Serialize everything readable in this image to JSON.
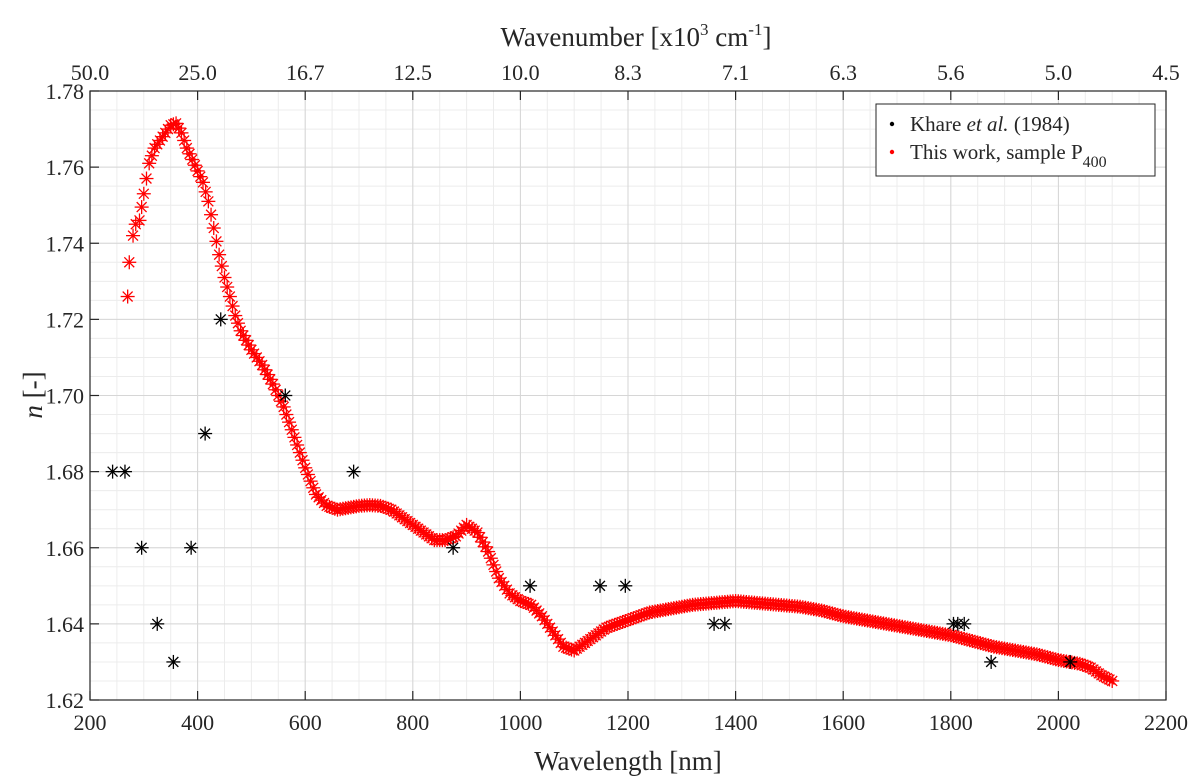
{
  "chart_data": {
    "type": "scatter",
    "xlabel": "Wavelength [nm]",
    "ylabel_italic": "n",
    "ylabel_rest": " [-]",
    "top_label_main": "Wavenumber [x10",
    "top_label_sup1": "3",
    "top_label_mid": " cm",
    "top_label_sup2": "-1",
    "top_label_end": "]",
    "xlim": [
      200,
      2200
    ],
    "ylim": [
      1.62,
      1.78
    ],
    "x_ticks": [
      200,
      400,
      600,
      800,
      1000,
      1200,
      1400,
      1600,
      1800,
      2000,
      2200
    ],
    "y_ticks": [
      1.62,
      1.64,
      1.66,
      1.68,
      1.7,
      1.72,
      1.74,
      1.76,
      1.78
    ],
    "y_tick_labels": [
      "1.62",
      "1.64",
      "1.66",
      "1.68",
      "1.70",
      "1.72",
      "1.74",
      "1.76",
      "1.78"
    ],
    "top_ticks": [
      {
        "wavelength": 200,
        "label": "50.0"
      },
      {
        "wavelength": 400,
        "label": "25.0"
      },
      {
        "wavelength": 600,
        "label": "16.7"
      },
      {
        "wavelength": 800,
        "label": "12.5"
      },
      {
        "wavelength": 1000,
        "label": "10.0"
      },
      {
        "wavelength": 1200,
        "label": "8.3"
      },
      {
        "wavelength": 1400,
        "label": "7.1"
      },
      {
        "wavelength": 1600,
        "label": "6.3"
      },
      {
        "wavelength": 1800,
        "label": "5.6"
      },
      {
        "wavelength": 2000,
        "label": "5.0"
      },
      {
        "wavelength": 2200,
        "label": "4.5"
      }
    ],
    "grid": true,
    "minor_grid": true,
    "legend_position": "top-right",
    "series": [
      {
        "name_parts": {
          "pre": "Khare ",
          "italic": "et al.",
          "post": " (1984)"
        },
        "color": "#000000",
        "marker": "asterisk",
        "points": [
          [
            242,
            1.68
          ],
          [
            265,
            1.68
          ],
          [
            296,
            1.66
          ],
          [
            325,
            1.64
          ],
          [
            355,
            1.63
          ],
          [
            388,
            1.66
          ],
          [
            414,
            1.69
          ],
          [
            443,
            1.72
          ],
          [
            563,
            1.7
          ],
          [
            690,
            1.68
          ],
          [
            875,
            1.66
          ],
          [
            1018,
            1.65
          ],
          [
            1148,
            1.65
          ],
          [
            1195,
            1.65
          ],
          [
            1360,
            1.64
          ],
          [
            1380,
            1.64
          ],
          [
            1805,
            1.64
          ],
          [
            1813,
            1.64
          ],
          [
            1825,
            1.64
          ],
          [
            1875,
            1.63
          ],
          [
            2022,
            1.63
          ]
        ]
      },
      {
        "name_parts": {
          "pre": "This work, sample P",
          "sub": "400"
        },
        "color": "#ff0000",
        "marker": "asterisk",
        "curve_keypoints": [
          [
            270,
            1.726
          ],
          [
            273,
            1.735
          ],
          [
            280,
            1.742
          ],
          [
            285,
            1.745
          ],
          [
            292,
            1.746
          ],
          [
            300,
            1.753
          ],
          [
            305,
            1.757
          ],
          [
            310,
            1.761
          ],
          [
            320,
            1.765
          ],
          [
            330,
            1.767
          ],
          [
            340,
            1.769
          ],
          [
            350,
            1.771
          ],
          [
            360,
            1.7715
          ],
          [
            370,
            1.769
          ],
          [
            380,
            1.765
          ],
          [
            390,
            1.762
          ],
          [
            400,
            1.759
          ],
          [
            410,
            1.756
          ],
          [
            420,
            1.751
          ],
          [
            430,
            1.744
          ],
          [
            440,
            1.737
          ],
          [
            450,
            1.731
          ],
          [
            460,
            1.726
          ],
          [
            470,
            1.721
          ],
          [
            480,
            1.717
          ],
          [
            500,
            1.712
          ],
          [
            520,
            1.708
          ],
          [
            540,
            1.703
          ],
          [
            560,
            1.697
          ],
          [
            580,
            1.689
          ],
          [
            600,
            1.681
          ],
          [
            620,
            1.674
          ],
          [
            640,
            1.671
          ],
          [
            660,
            1.67
          ],
          [
            680,
            1.6705
          ],
          [
            700,
            1.671
          ],
          [
            720,
            1.6712
          ],
          [
            740,
            1.671
          ],
          [
            760,
            1.67
          ],
          [
            780,
            1.668
          ],
          [
            800,
            1.666
          ],
          [
            820,
            1.664
          ],
          [
            840,
            1.662
          ],
          [
            860,
            1.662
          ],
          [
            880,
            1.663
          ],
          [
            900,
            1.666
          ],
          [
            920,
            1.664
          ],
          [
            940,
            1.659
          ],
          [
            960,
            1.652
          ],
          [
            980,
            1.648
          ],
          [
            1000,
            1.646
          ],
          [
            1020,
            1.645
          ],
          [
            1040,
            1.642
          ],
          [
            1060,
            1.638
          ],
          [
            1080,
            1.634
          ],
          [
            1100,
            1.633
          ],
          [
            1120,
            1.635
          ],
          [
            1140,
            1.637
          ],
          [
            1160,
            1.639
          ],
          [
            1180,
            1.64
          ],
          [
            1200,
            1.641
          ],
          [
            1240,
            1.643
          ],
          [
            1280,
            1.644
          ],
          [
            1320,
            1.645
          ],
          [
            1360,
            1.6455
          ],
          [
            1400,
            1.646
          ],
          [
            1440,
            1.6455
          ],
          [
            1480,
            1.645
          ],
          [
            1520,
            1.6445
          ],
          [
            1560,
            1.6435
          ],
          [
            1600,
            1.642
          ],
          [
            1640,
            1.641
          ],
          [
            1680,
            1.64
          ],
          [
            1720,
            1.639
          ],
          [
            1760,
            1.638
          ],
          [
            1800,
            1.637
          ],
          [
            1840,
            1.6355
          ],
          [
            1880,
            1.634
          ],
          [
            1920,
            1.633
          ],
          [
            1960,
            1.632
          ],
          [
            2000,
            1.6305
          ],
          [
            2040,
            1.6295
          ],
          [
            2060,
            1.6285
          ],
          [
            2080,
            1.6265
          ],
          [
            2100,
            1.625
          ]
        ]
      }
    ]
  }
}
